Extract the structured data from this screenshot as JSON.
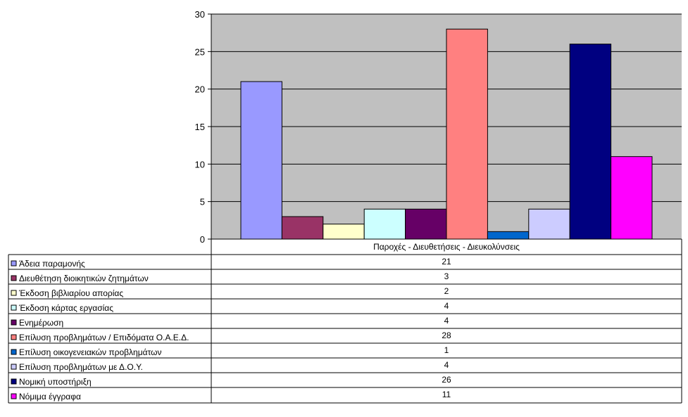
{
  "chart_data": {
    "type": "bar",
    "category_label": "Παροχές - Διευθετήσεις - Διευκολύνσεις",
    "yticks": [
      "0",
      "5",
      "10",
      "15",
      "20",
      "25",
      "30"
    ],
    "ylim": [
      0,
      30
    ],
    "grid": true,
    "legend_placement": "data-table-left",
    "plot_background": "#c0c0c0",
    "series": [
      {
        "name": "Άδεια παραμονής",
        "value": 21,
        "color": "#9999ff"
      },
      {
        "name": "Διευθέτηση διοικητικών ζητημάτων",
        "value": 3,
        "color": "#993366"
      },
      {
        "name": "Έκδοση βιβλιαρίου απορίας",
        "value": 2,
        "color": "#ffffcc"
      },
      {
        "name": "Έκδοση κάρτας εργασίας",
        "value": 4,
        "color": "#ccffff"
      },
      {
        "name": "Ενημέρωση",
        "value": 4,
        "color": "#660066"
      },
      {
        "name": "Επίλυση προβλημάτων / Επιδόματα Ο.Α.Ε.Δ.",
        "value": 28,
        "color": "#ff8080"
      },
      {
        "name": "Επίλυση οικογενειακών προβλημάτων",
        "value": 1,
        "color": "#0066cc"
      },
      {
        "name": "Επίλυση προβλημάτων με Δ.Ο.Υ.",
        "value": 4,
        "color": "#ccccff"
      },
      {
        "name": "Νομική υποστήριξη",
        "value": 26,
        "color": "#000080"
      },
      {
        "name": "Νόμιμα έγγραφα",
        "value": 11,
        "color": "#ff00ff"
      }
    ]
  }
}
